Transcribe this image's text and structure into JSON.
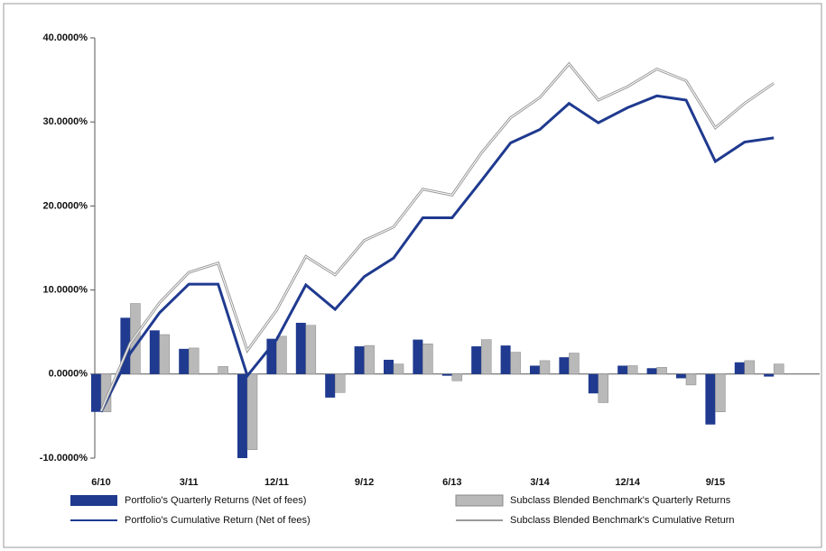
{
  "chart_data": {
    "type": "bar-line",
    "categories": [
      "6/10",
      null,
      null,
      "3/11",
      null,
      null,
      "12/11",
      null,
      null,
      "9/12",
      null,
      null,
      "6/13",
      null,
      null,
      "3/14",
      null,
      null,
      "12/14",
      null,
      null,
      "9/15",
      null,
      null
    ],
    "series": [
      {
        "name": "Portfolio's Quarterly Returns (Net of fees)",
        "kind": "bar",
        "color": "#1f3a8f",
        "values": [
          -4.5,
          6.7,
          5.2,
          3.0,
          0.0,
          -10.0,
          4.2,
          6.1,
          -2.8,
          3.3,
          1.7,
          4.1,
          -0.2,
          3.3,
          3.4,
          1.0,
          2.0,
          -2.3,
          1.0,
          0.7,
          -0.5,
          -6.0,
          1.4,
          -0.3
        ]
      },
      {
        "name": "Subclass Blended Benchmark's Quarterly Returns",
        "kind": "bar",
        "color": "#b9b9b9",
        "values": [
          -4.5,
          8.4,
          4.7,
          3.1,
          0.9,
          -9.0,
          4.5,
          5.8,
          -2.2,
          3.4,
          1.2,
          3.6,
          -0.8,
          4.1,
          2.6,
          1.6,
          2.5,
          -3.4,
          1.0,
          0.8,
          -1.3,
          -4.5,
          1.6,
          1.2
        ]
      },
      {
        "name": "Portfolio's Cumulative Return (Net of fees)",
        "kind": "line",
        "color": "#1f3a8f",
        "values": [
          -4.5,
          2.5,
          7.3,
          10.7,
          10.7,
          -0.2,
          4.1,
          10.6,
          7.7,
          11.6,
          13.8,
          18.6,
          18.6,
          23.0,
          27.5,
          29.1,
          32.2,
          29.9,
          31.7,
          33.1,
          32.6,
          25.3,
          27.6,
          28.1
        ]
      },
      {
        "name": "Subclass Blended Benchmark's Cumulative Return",
        "kind": "line",
        "color": "#9a9a9a",
        "values": [
          -4.4,
          3.7,
          8.5,
          12.1,
          13.2,
          2.8,
          7.6,
          14.0,
          11.8,
          15.9,
          17.5,
          22.0,
          21.3,
          26.3,
          30.5,
          32.9,
          36.9,
          32.6,
          34.2,
          36.3,
          34.9,
          29.3,
          32.2,
          34.6
        ]
      }
    ],
    "ylim": [
      -10,
      40
    ],
    "yticks": [
      {
        "value": -10,
        "label": "-10.0000%"
      },
      {
        "value": 0,
        "label": "0.0000%"
      },
      {
        "value": 10,
        "label": "10.0000%"
      },
      {
        "value": 20,
        "label": "20.0000%"
      },
      {
        "value": 30,
        "label": "30.0000%"
      },
      {
        "value": 40,
        "label": "40.0000%"
      }
    ]
  }
}
